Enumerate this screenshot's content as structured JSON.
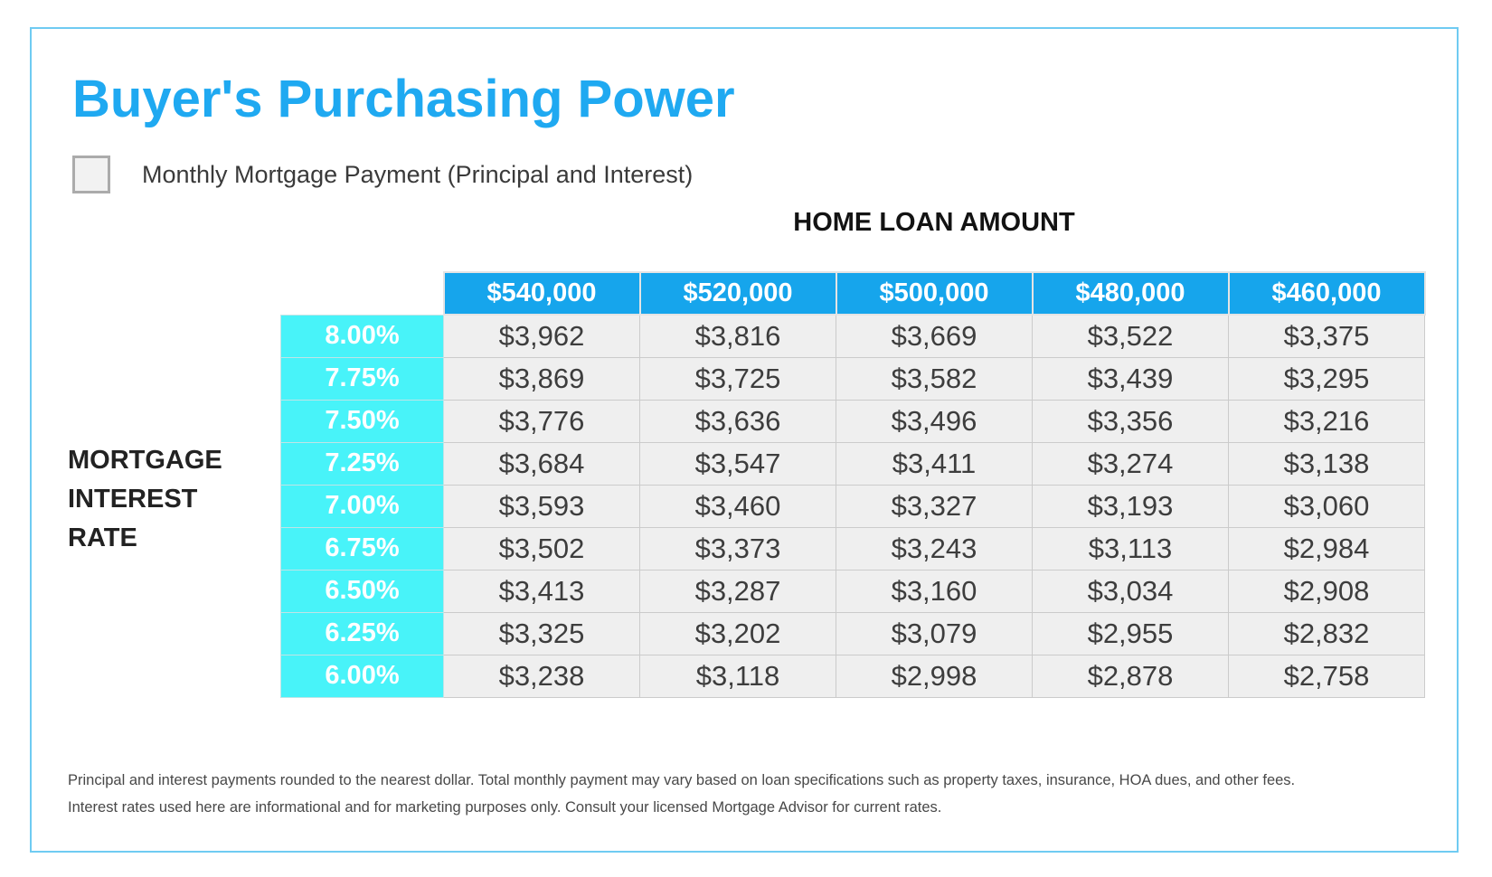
{
  "page": {
    "title": "Buyer's Purchasing Power",
    "legend_label": "Monthly Mortgage Payment (Principal and Interest)",
    "column_group_title": "HOME LOAN AMOUNT",
    "row_group_title_lines": [
      "MORTGAGE",
      "INTEREST",
      "RATE"
    ],
    "footnote_line1": "Principal and interest payments rounded to the nearest dollar. Total monthly payment may vary based on loan specifications such as property taxes, insurance, HOA dues, and other fees.",
    "footnote_line2": "Interest rates used here are informational and for marketing purposes only. Consult your licensed Mortgage Advisor for current rates."
  },
  "colors": {
    "title_blue": "#1FA9F1",
    "header_blue": "#16A5EC",
    "rate_cyan": "#48F3F9",
    "cell_bg": "#EFEFEF",
    "page_border": "#6FCBF2"
  },
  "table": {
    "loan_amounts": [
      "$540,000",
      "$520,000",
      "$500,000",
      "$480,000",
      "$460,000"
    ],
    "rows": [
      {
        "rate": "8.00%",
        "payments": [
          "$3,962",
          "$3,816",
          "$3,669",
          "$3,522",
          "$3,375"
        ]
      },
      {
        "rate": "7.75%",
        "payments": [
          "$3,869",
          "$3,725",
          "$3,582",
          "$3,439",
          "$3,295"
        ]
      },
      {
        "rate": "7.50%",
        "payments": [
          "$3,776",
          "$3,636",
          "$3,496",
          "$3,356",
          "$3,216"
        ]
      },
      {
        "rate": "7.25%",
        "payments": [
          "$3,684",
          "$3,547",
          "$3,411",
          "$3,274",
          "$3,138"
        ]
      },
      {
        "rate": "7.00%",
        "payments": [
          "$3,593",
          "$3,460",
          "$3,327",
          "$3,193",
          "$3,060"
        ]
      },
      {
        "rate": "6.75%",
        "payments": [
          "$3,502",
          "$3,373",
          "$3,243",
          "$3,113",
          "$2,984"
        ]
      },
      {
        "rate": "6.50%",
        "payments": [
          "$3,413",
          "$3,287",
          "$3,160",
          "$3,034",
          "$2,908"
        ]
      },
      {
        "rate": "6.25%",
        "payments": [
          "$3,325",
          "$3,202",
          "$3,079",
          "$2,955",
          "$2,832"
        ]
      },
      {
        "rate": "6.00%",
        "payments": [
          "$3,238",
          "$3,118",
          "$2,998",
          "$2,878",
          "$2,758"
        ]
      }
    ]
  },
  "chart_data": {
    "type": "table",
    "title": "Buyer's Purchasing Power",
    "column_header_group": "HOME LOAN AMOUNT",
    "row_header_group": "MORTGAGE INTEREST RATE",
    "columns": [
      "$540,000",
      "$520,000",
      "$500,000",
      "$480,000",
      "$460,000"
    ],
    "row_labels": [
      "8.00%",
      "7.75%",
      "7.50%",
      "7.25%",
      "7.00%",
      "6.75%",
      "6.50%",
      "6.25%",
      "6.00%"
    ],
    "values": [
      [
        3962,
        3816,
        3669,
        3522,
        3375
      ],
      [
        3869,
        3725,
        3582,
        3439,
        3295
      ],
      [
        3776,
        3636,
        3496,
        3356,
        3216
      ],
      [
        3684,
        3547,
        3411,
        3274,
        3138
      ],
      [
        3593,
        3460,
        3327,
        3193,
        3060
      ],
      [
        3502,
        3373,
        3243,
        3113,
        2984
      ],
      [
        3413,
        3287,
        3160,
        3034,
        2908
      ],
      [
        3325,
        3202,
        3079,
        2955,
        2832
      ],
      [
        3238,
        3118,
        2998,
        2878,
        2758
      ]
    ]
  }
}
